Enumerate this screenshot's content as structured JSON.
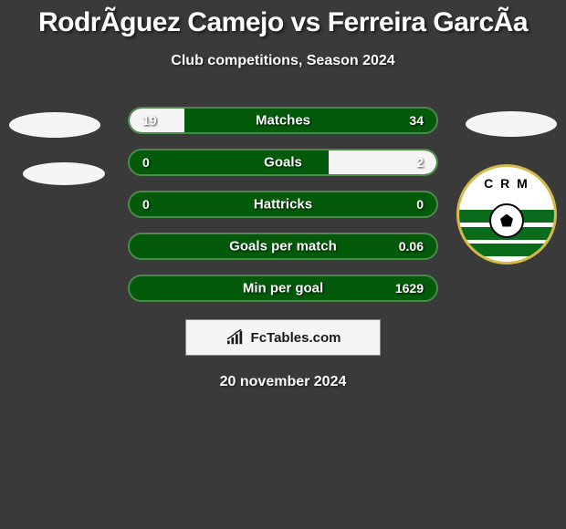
{
  "title": "RodrÃguez Camejo vs Ferreira GarcÃa",
  "subtitle": "Club competitions, Season 2024",
  "date": "20 november 2024",
  "watermark": {
    "text": "FcTables.com"
  },
  "logo": {
    "text": "C R M",
    "border_color": "#d4b848",
    "stripe_color": "#0a6b1a",
    "background": "#ffffff"
  },
  "colors": {
    "bar_bg": "#035a0a",
    "bar_border": "#4a8a4a",
    "bar_fill": "#f5f5f5",
    "page_bg": "#3a3a3a",
    "text": "#ffffff",
    "watermark_bg": "#f5f5f5"
  },
  "stats": [
    {
      "label": "Matches",
      "left_value": "19",
      "right_value": "34",
      "left_pct": 18,
      "right_pct": 0
    },
    {
      "label": "Goals",
      "left_value": "0",
      "right_value": "2",
      "left_pct": 0,
      "right_pct": 35
    },
    {
      "label": "Hattricks",
      "left_value": "0",
      "right_value": "0",
      "left_pct": 0,
      "right_pct": 0
    },
    {
      "label": "Goals per match",
      "left_value": "",
      "right_value": "0.06",
      "left_pct": 0,
      "right_pct": 0
    },
    {
      "label": "Min per goal",
      "left_value": "",
      "right_value": "1629",
      "left_pct": 0,
      "right_pct": 0
    }
  ]
}
